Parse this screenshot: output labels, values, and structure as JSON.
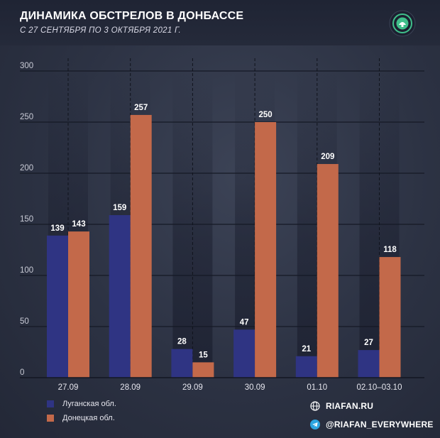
{
  "header": {
    "title": "ДИНАМИКА ОБСТРЕЛОВ В ДОНБАССЕ",
    "subtitle": "С 27 СЕНТЯБРЯ ПО 3 ОКТЯБРЯ 2021 Г."
  },
  "logo": {
    "icon": "riafan-logo-icon",
    "color": "#3fbf8a"
  },
  "chart_data": {
    "type": "bar",
    "title": "ДИНАМИКА ОБСТРЕЛОВ В ДОНБАССЕ",
    "subtitle": "С 27 СЕНТЯБРЯ ПО 3 ОКТЯБРЯ 2021 Г.",
    "categories": [
      "27.09",
      "28.09",
      "29.09",
      "30.09",
      "01.10",
      "02.10–03.10"
    ],
    "series": [
      {
        "name": "Луганская обл.",
        "color": "#2f3483",
        "values": [
          139,
          159,
          28,
          47,
          21,
          27
        ]
      },
      {
        "name": "Донецкая обл.",
        "color": "#c3694a",
        "values": [
          143,
          257,
          15,
          250,
          209,
          118
        ]
      }
    ],
    "yticks": [
      0,
      50,
      100,
      150,
      200,
      250,
      300
    ],
    "ylim": [
      0,
      300
    ],
    "xlabel": "",
    "ylabel": "",
    "grid": true,
    "legend_position": "bottom-left"
  },
  "social": {
    "site": "RIAFAN.RU",
    "telegram": "@RIAFAN_EVERYWHERE"
  }
}
